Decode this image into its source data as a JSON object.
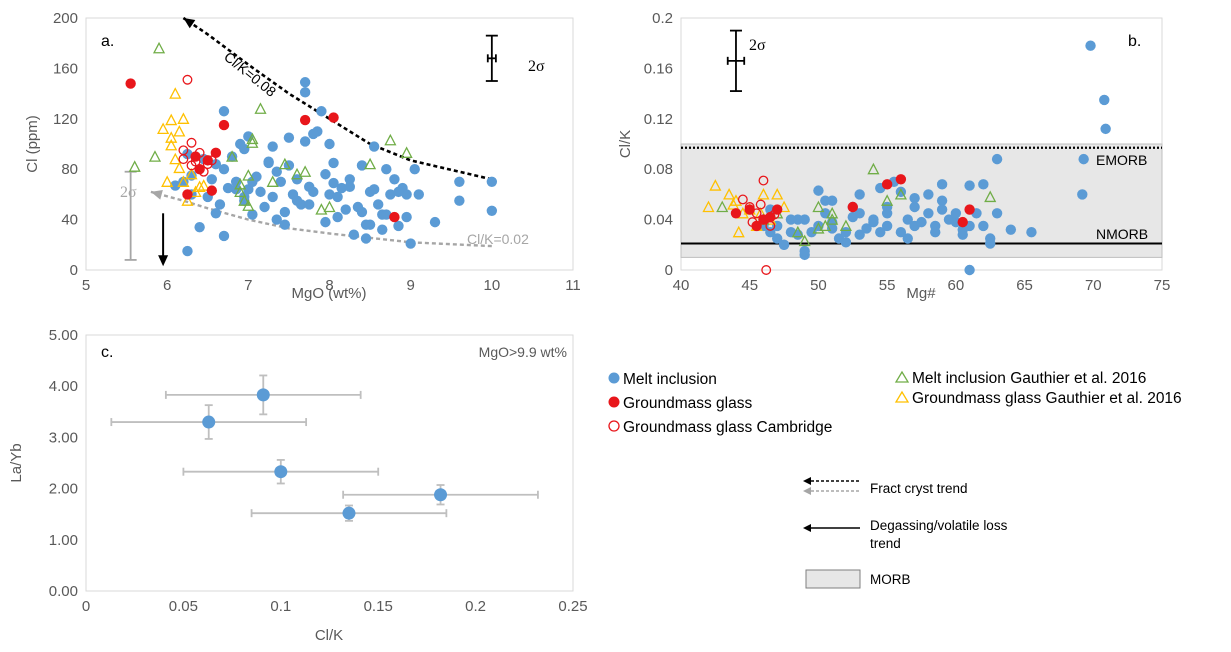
{
  "colors": {
    "melt_inclusion": "#5b9bd5",
    "groundmass_glass": "#e8161b",
    "cambridge": "#e8161b",
    "gauthier_melt": "#70ad47",
    "gauthier_glass": "#ffc000",
    "fract_black": "#000000",
    "fract_grey": "#a6a6a6",
    "morb_fill": "#e7e7e7",
    "errbar": "#bfbfbf",
    "axis_text": "#595959"
  },
  "legend": {
    "melt_inclusion": "Melt inclusion",
    "groundmass_glass": "Groundmass glass",
    "cambridge": "Groundmass glass Cambridge",
    "gauthier_melt": "Melt inclusion Gauthier et al. 2016",
    "gauthier_glass": "Groundmass glass Gauthier et al. 2016",
    "fract_line1": "Fract cryst trend",
    "degas_line1": "Degassing/volatile loss",
    "degas_line2": "trend",
    "morb": "MORB"
  },
  "chart_data": [
    {
      "panel_label": "a.",
      "type": "scatter",
      "xlabel": "MgO (wt%)",
      "ylabel": "Cl (ppm)",
      "xlim": [
        5,
        11
      ],
      "ylim": [
        0,
        200
      ],
      "x_ticks": [
        "5",
        "6",
        "7",
        "8",
        "9",
        "10",
        "11"
      ],
      "y_ticks": [
        "0",
        "40",
        "80",
        "120",
        "160",
        "200"
      ],
      "annotations": {
        "clk_high": "Cl/K=0.08",
        "clk_low": "Cl/K=0.02",
        "sigma": "2σ",
        "sigma_low": "2σ"
      },
      "trend_high": [
        [
          10.0,
          72
        ],
        [
          9.0,
          87
        ],
        [
          8.5,
          100
        ],
        [
          8.0,
          120
        ],
        [
          7.5,
          140
        ],
        [
          7.0,
          163
        ],
        [
          6.5,
          187
        ],
        [
          6.2,
          200
        ]
      ],
      "trend_low": [
        [
          10.0,
          19
        ],
        [
          9.0,
          22
        ],
        [
          8.0,
          29
        ],
        [
          7.5,
          33
        ],
        [
          7.0,
          40
        ],
        [
          6.5,
          49
        ],
        [
          6.2,
          55
        ],
        [
          5.8,
          62
        ]
      ],
      "error_bar_2sigma": {
        "x": 10.0,
        "y": 168,
        "y_err": 18,
        "x_err": 0.05
      },
      "error_bar_low": {
        "x": 5.55,
        "y": 43,
        "y_err": 35
      },
      "degassing_arrow": {
        "x": 5.95,
        "y_from": 45,
        "y_to": 3
      },
      "series": [
        {
          "name": "Melt inclusion",
          "marker": "filled-circle",
          "color_key": "melt_inclusion",
          "x": [
            6.1,
            6.2,
            6.25,
            6.3,
            6.4,
            6.5,
            6.55,
            6.6,
            6.65,
            6.7,
            6.7,
            6.75,
            6.8,
            6.85,
            6.9,
            6.95,
            7.0,
            7.0,
            7.05,
            7.1,
            7.15,
            7.2,
            7.25,
            7.3,
            7.3,
            7.35,
            7.4,
            7.45,
            7.5,
            7.5,
            7.55,
            7.6,
            7.65,
            7.7,
            7.7,
            7.75,
            7.8,
            7.85,
            7.9,
            7.95,
            8.0,
            8.0,
            8.05,
            8.1,
            8.15,
            8.2,
            8.25,
            8.3,
            8.35,
            8.4,
            8.45,
            8.5,
            8.5,
            8.55,
            8.6,
            8.65,
            8.7,
            8.75,
            8.8,
            8.85,
            8.9,
            8.95,
            9.0,
            9.05,
            9.1,
            9.3,
            9.6,
            9.6,
            10.0,
            10.0,
            6.3,
            6.45,
            6.7,
            6.85,
            6.95,
            7.05,
            7.25,
            7.45,
            7.6,
            7.7,
            7.8,
            7.95,
            8.1,
            8.25,
            8.45,
            8.55,
            8.7,
            8.85,
            8.95,
            6.25,
            6.6,
            6.95,
            7.35,
            7.75,
            8.05,
            8.4,
            8.65
          ],
          "y": [
            67,
            70,
            15,
            60,
            34,
            58,
            72,
            84,
            52,
            126,
            27,
            65,
            90,
            70,
            100,
            55,
            106,
            64,
            44,
            74,
            62,
            50,
            86,
            98,
            58,
            40,
            70,
            46,
            83,
            105,
            60,
            72,
            52,
            149,
            141,
            66,
            62,
            110,
            126,
            38,
            100,
            60,
            85,
            42,
            65,
            48,
            72,
            28,
            50,
            83,
            25,
            62,
            36,
            98,
            52,
            44,
            80,
            60,
            72,
            35,
            65,
            60,
            21,
            80,
            60,
            38,
            70,
            55,
            70,
            47,
            75,
            88,
            80,
            64,
            96,
            70,
            85,
            36,
            55,
            102,
            108,
            76,
            58,
            66,
            36,
            64,
            44,
            62,
            42,
            92,
            45,
            58,
            78,
            52,
            69,
            46,
            32
          ]
        },
        {
          "name": "Groundmass glass",
          "marker": "filled-circle",
          "color_key": "groundmass_glass",
          "x": [
            5.55,
            6.25,
            6.35,
            6.4,
            6.5,
            6.55,
            6.6,
            6.7,
            7.7,
            8.05,
            8.8
          ],
          "y": [
            148,
            60,
            90,
            80,
            87,
            63,
            93,
            115,
            119,
            121,
            42
          ]
        },
        {
          "name": "Groundmass glass Cambridge",
          "marker": "open-circle",
          "color_key": "cambridge",
          "x": [
            6.2,
            6.25,
            6.3,
            6.35,
            6.4,
            6.45,
            6.5,
            6.55,
            6.2,
            6.3
          ],
          "y": [
            88,
            151,
            101,
            86,
            93,
            78,
            84,
            87,
            95,
            83
          ]
        },
        {
          "name": "Melt inclusion Gauthier et al. 2016",
          "marker": "open-triangle",
          "color_key": "gauthier_melt",
          "x": [
            5.6,
            5.85,
            5.9,
            6.9,
            7.05,
            7.05,
            6.95,
            7.0,
            7.0,
            7.3,
            7.45,
            7.6,
            7.7,
            7.9,
            8.0,
            8.5,
            8.75,
            8.95,
            6.8,
            6.9,
            7.15
          ],
          "y": [
            82,
            90,
            176,
            68,
            101,
            104,
            55,
            51,
            75,
            70,
            84,
            76,
            78,
            48,
            50,
            84,
            103,
            93,
            90,
            62,
            128
          ]
        },
        {
          "name": "Groundmass glass Gauthier et al. 2016",
          "marker": "open-triangle",
          "color_key": "gauthier_glass",
          "x": [
            5.95,
            6.0,
            6.05,
            6.05,
            6.1,
            6.1,
            6.15,
            6.2,
            6.2,
            6.25,
            6.3,
            6.35,
            6.4,
            6.45,
            6.05,
            6.15
          ],
          "y": [
            112,
            70,
            99,
            119,
            140,
            88,
            110,
            70,
            120,
            55,
            76,
            62,
            66,
            67,
            105,
            81
          ]
        }
      ]
    },
    {
      "panel_label": "b.",
      "type": "scatter",
      "xlabel": "Mg#",
      "ylabel": "Cl/K",
      "xlim": [
        40,
        75
      ],
      "ylim": [
        0,
        0.2
      ],
      "x_ticks": [
        "40",
        "45",
        "50",
        "55",
        "60",
        "65",
        "70",
        "75"
      ],
      "y_ticks": [
        "0",
        "0.04",
        "0.08",
        "0.12",
        "0.16",
        "0.2"
      ],
      "morb_band": [
        0.01,
        0.1
      ],
      "emorb_line": 0.097,
      "nmorb_line": 0.021,
      "annotations": {
        "emorb": "EMORB",
        "nmorb": "NMORB",
        "sigma": "2σ"
      },
      "error_bar_2sigma": {
        "x": 44.0,
        "y": 0.166,
        "y_err": 0.024,
        "x_err": 0.6
      },
      "series": [
        {
          "name": "Melt inclusion",
          "marker": "filled-circle",
          "color_key": "melt_inclusion",
          "x": [
            46,
            46.5,
            47,
            47.5,
            48,
            48.5,
            49,
            49,
            49.5,
            50,
            50,
            50.5,
            51,
            51,
            51.5,
            52,
            52.5,
            53,
            53,
            53.5,
            54,
            54.5,
            55,
            55,
            55.5,
            56,
            56.5,
            57,
            57,
            57.5,
            58,
            58,
            58.5,
            59,
            59,
            59.5,
            60,
            60,
            60.5,
            61,
            61,
            61.5,
            62,
            62,
            62.5,
            63,
            63,
            64,
            65.5,
            69.2,
            69.3,
            69.8,
            70.8,
            70.9,
            46.5,
            47.5,
            48.5,
            50.5,
            52.5,
            54.5,
            56.5,
            58.5,
            60.5,
            62.5,
            61,
            53,
            55,
            57,
            59,
            49,
            51,
            48,
            47,
            52,
            54,
            56
          ],
          "y": [
            0.035,
            0.03,
            0.025,
            0.02,
            0.03,
            0.028,
            0.012,
            0.015,
            0.03,
            0.063,
            0.035,
            0.045,
            0.038,
            0.055,
            0.025,
            0.03,
            0.05,
            0.028,
            0.045,
            0.033,
            0.04,
            0.065,
            0.035,
            0.05,
            0.07,
            0.062,
            0.04,
            0.035,
            0.05,
            0.038,
            0.045,
            0.06,
            0.035,
            0.055,
            0.068,
            0.04,
            0.038,
            0.045,
            0.032,
            0.067,
            0.035,
            0.045,
            0.068,
            0.035,
            0.025,
            0.088,
            0.045,
            0.032,
            0.03,
            0.06,
            0.088,
            0.178,
            0.135,
            0.112,
            0.048,
            0.02,
            0.04,
            0.055,
            0.042,
            0.03,
            0.025,
            0.03,
            0.028,
            0.021,
            0.0,
            0.06,
            0.045,
            0.057,
            0.048,
            0.04,
            0.033,
            0.04,
            0.035,
            0.022,
            0.038,
            0.03
          ]
        },
        {
          "name": "Groundmass glass",
          "marker": "filled-circle",
          "color_key": "groundmass_glass",
          "x": [
            44,
            45,
            45.5,
            46,
            46.5,
            47,
            52.5,
            55,
            56,
            60.5,
            61
          ],
          "y": [
            0.045,
            0.048,
            0.035,
            0.04,
            0.042,
            0.048,
            0.05,
            0.068,
            0.072,
            0.038,
            0.048
          ]
        },
        {
          "name": "Groundmass glass Cambridge",
          "marker": "open-circle",
          "color_key": "cambridge",
          "x": [
            44.5,
            45,
            45.5,
            46,
            46,
            46.2,
            46.5,
            45.8,
            45.2,
            46.8
          ],
          "y": [
            0.056,
            0.05,
            0.045,
            0.071,
            0.04,
            0.0,
            0.035,
            0.052,
            0.038,
            0.044
          ]
        },
        {
          "name": "Melt inclusion Gauthier et al. 2016",
          "marker": "open-triangle",
          "color_key": "gauthier_melt",
          "x": [
            43,
            46,
            47,
            48.5,
            49,
            50,
            50.5,
            51,
            52,
            54,
            55,
            56,
            62.5,
            50,
            51
          ],
          "y": [
            0.05,
            0.04,
            0.045,
            0.03,
            0.023,
            0.05,
            0.035,
            0.04,
            0.035,
            0.08,
            0.055,
            0.06,
            0.058,
            0.033,
            0.045
          ]
        },
        {
          "name": "Groundmass glass Gauthier et al. 2016",
          "marker": "open-triangle",
          "color_key": "gauthier_glass",
          "x": [
            42,
            42.5,
            43.5,
            44,
            44.5,
            45,
            45.5,
            46,
            46.5,
            47,
            47.5,
            44.2,
            45.8,
            43.8
          ],
          "y": [
            0.05,
            0.067,
            0.06,
            0.055,
            0.045,
            0.048,
            0.035,
            0.06,
            0.04,
            0.06,
            0.05,
            0.03,
            0.045,
            0.052
          ]
        }
      ]
    },
    {
      "panel_label": "c.",
      "type": "scatter",
      "xlabel": "Cl/K",
      "ylabel": "La/Yb",
      "xlim": [
        0,
        0.25
      ],
      "ylim": [
        0,
        5
      ],
      "x_ticks": [
        "0",
        "0.05",
        "0.1",
        "0.15",
        "0.2",
        "0.25"
      ],
      "y_ticks": [
        "0.00",
        "1.00",
        "2.00",
        "3.00",
        "4.00",
        "5.00"
      ],
      "annotations": {
        "note": "MgO>9.9 wt%"
      },
      "series": [
        {
          "name": "Melt inclusion",
          "marker": "filled-circle",
          "color_key": "melt_inclusion",
          "points": [
            {
              "x": 0.091,
              "y": 3.83,
              "x_err": 0.05,
              "y_err": 0.38
            },
            {
              "x": 0.063,
              "y": 3.3,
              "x_err": 0.05,
              "y_err": 0.33
            },
            {
              "x": 0.1,
              "y": 2.33,
              "x_err": 0.05,
              "y_err": 0.23
            },
            {
              "x": 0.182,
              "y": 1.88,
              "x_err": 0.05,
              "y_err": 0.19
            },
            {
              "x": 0.135,
              "y": 1.52,
              "x_err": 0.05,
              "y_err": 0.15
            }
          ]
        }
      ]
    }
  ]
}
